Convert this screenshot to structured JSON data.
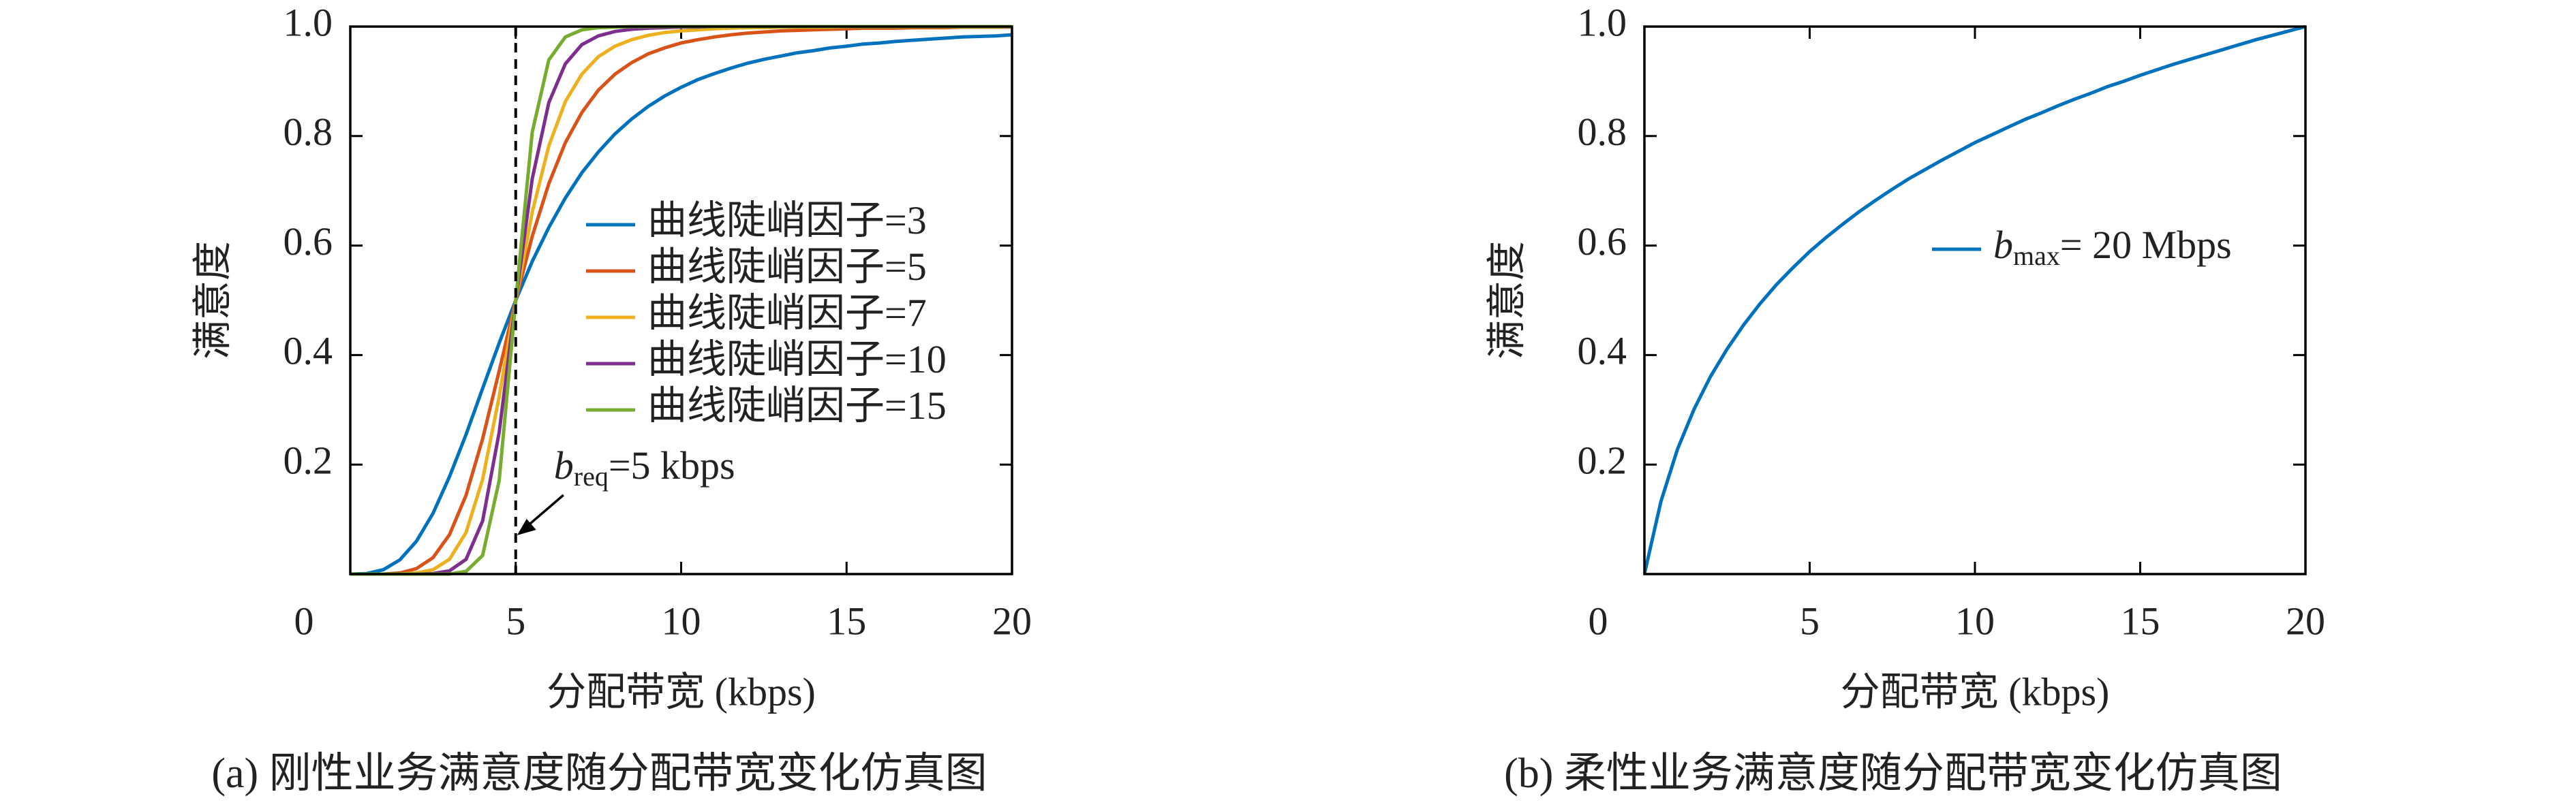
{
  "chart_data": [
    {
      "type": "line",
      "title": "(a) 刚性业务满意度随分配带宽变化仿真图",
      "xlabel": "分配带宽 (kbps)",
      "ylabel": "满意度",
      "xlim": [
        0,
        20
      ],
      "ylim": [
        0,
        1
      ],
      "xticks": [
        0,
        5,
        10,
        15,
        20
      ],
      "yticks": [
        0.2,
        0.4,
        0.6,
        0.8,
        {
          "value": 1,
          "label": "1.0"
        }
      ],
      "vline": 5,
      "annotation": {
        "text": "b",
        "subscript": "req",
        "suffix": "=5 kbps"
      },
      "x": [
        0,
        0.5,
        1,
        1.5,
        2,
        2.5,
        3,
        3.5,
        4,
        4.5,
        5,
        5.5,
        6,
        6.5,
        7,
        7.5,
        8,
        8.5,
        9,
        9.5,
        10,
        10.5,
        11,
        11.5,
        12,
        12.5,
        13,
        13.5,
        14,
        14.5,
        15,
        15.5,
        16,
        16.5,
        17,
        17.5,
        18,
        18.5,
        19,
        19.5,
        20
      ],
      "series": [
        {
          "name": "曲线陡峭因子=3",
          "color": "#0072bd",
          "values": [
            0,
            0.001,
            0.008,
            0.026,
            0.06,
            0.111,
            0.178,
            0.255,
            0.339,
            0.422,
            0.5,
            0.571,
            0.633,
            0.687,
            0.733,
            0.771,
            0.804,
            0.831,
            0.854,
            0.873,
            0.889,
            0.903,
            0.914,
            0.924,
            0.933,
            0.94,
            0.946,
            0.952,
            0.956,
            0.961,
            0.964,
            0.968,
            0.97,
            0.973,
            0.975,
            0.977,
            0.979,
            0.981,
            0.982,
            0.983,
            0.985
          ]
        },
        {
          "name": "曲线陡峭因子=5",
          "color": "#d95319",
          "values": [
            0,
            0,
            0,
            0.002,
            0.01,
            0.03,
            0.072,
            0.144,
            0.247,
            0.371,
            0.5,
            0.617,
            0.713,
            0.788,
            0.843,
            0.884,
            0.913,
            0.934,
            0.95,
            0.961,
            0.97,
            0.976,
            0.981,
            0.985,
            0.988,
            0.99,
            0.992,
            0.993,
            0.994,
            0.995,
            0.996,
            0.997,
            0.997,
            0.997,
            0.998,
            0.998,
            0.998,
            0.999,
            0.999,
            0.999,
            0.999
          ]
        },
        {
          "name": "曲线陡峭因子=7",
          "color": "#edb120",
          "values": [
            0,
            0,
            0,
            0,
            0.002,
            0.008,
            0.027,
            0.076,
            0.173,
            0.324,
            0.5,
            0.661,
            0.782,
            0.863,
            0.913,
            0.945,
            0.964,
            0.976,
            0.984,
            0.989,
            0.992,
            0.994,
            0.996,
            0.997,
            0.998,
            0.998,
            0.999,
            0.999,
            0.999,
            0.999,
            1,
            1,
            1,
            1,
            1,
            1,
            1,
            1,
            1,
            1,
            1
          ]
        },
        {
          "name": "曲线陡峭因子=10",
          "color": "#7e2f8e",
          "values": [
            0,
            0,
            0,
            0,
            0,
            0.001,
            0.006,
            0.027,
            0.097,
            0.259,
            0.5,
            0.722,
            0.861,
            0.932,
            0.967,
            0.983,
            0.991,
            0.995,
            0.997,
            0.998,
            0.999,
            0.999,
            1,
            1,
            1,
            1,
            1,
            1,
            1,
            1,
            1,
            1,
            1,
            1,
            1,
            1,
            1,
            1,
            1,
            1,
            1
          ]
        },
        {
          "name": "曲线陡峭因子=15",
          "color": "#77ac30",
          "values": [
            0,
            0,
            0,
            0,
            0,
            0,
            0,
            0.005,
            0.034,
            0.171,
            0.5,
            0.807,
            0.939,
            0.981,
            0.994,
            0.998,
            0.999,
            1,
            1,
            1,
            1,
            1,
            1,
            1,
            1,
            1,
            1,
            1,
            1,
            1,
            1,
            1,
            1,
            1,
            1,
            1,
            1,
            1,
            1,
            1,
            1
          ]
        }
      ]
    },
    {
      "type": "line",
      "title": "(b) 柔性业务满意度随分配带宽变化仿真图",
      "xlabel": "分配带宽 (kbps)",
      "ylabel": "满意度",
      "xlim": [
        0,
        20
      ],
      "ylim": [
        0,
        1
      ],
      "xticks": [
        0,
        5,
        10,
        15,
        20
      ],
      "yticks": [
        0.2,
        0.4,
        0.6,
        0.8,
        {
          "value": 1,
          "label": "1.0"
        }
      ],
      "x": [
        0,
        0.5,
        1,
        1.5,
        2,
        2.5,
        3,
        3.5,
        4,
        4.5,
        5,
        5.5,
        6,
        6.5,
        7,
        7.5,
        8,
        8.5,
        9,
        9.5,
        10,
        10.5,
        11,
        11.5,
        12,
        12.5,
        13,
        13.5,
        14,
        14.5,
        15,
        15.5,
        16,
        16.5,
        17,
        17.5,
        18,
        18.5,
        19,
        19.5,
        20
      ],
      "series": [
        {
          "name": "b",
          "subscript": "max",
          "name_suffix": "= 20 Mbps",
          "color": "#0072bd",
          "values": [
            0,
            0.133,
            0.228,
            0.301,
            0.361,
            0.411,
            0.455,
            0.494,
            0.529,
            0.56,
            0.589,
            0.615,
            0.639,
            0.662,
            0.683,
            0.703,
            0.722,
            0.739,
            0.756,
            0.772,
            0.788,
            0.802,
            0.816,
            0.83,
            0.842,
            0.855,
            0.867,
            0.878,
            0.89,
            0.9,
            0.911,
            0.921,
            0.931,
            0.94,
            0.949,
            0.958,
            0.967,
            0.976,
            0.984,
            0.992,
            1
          ]
        }
      ]
    }
  ]
}
